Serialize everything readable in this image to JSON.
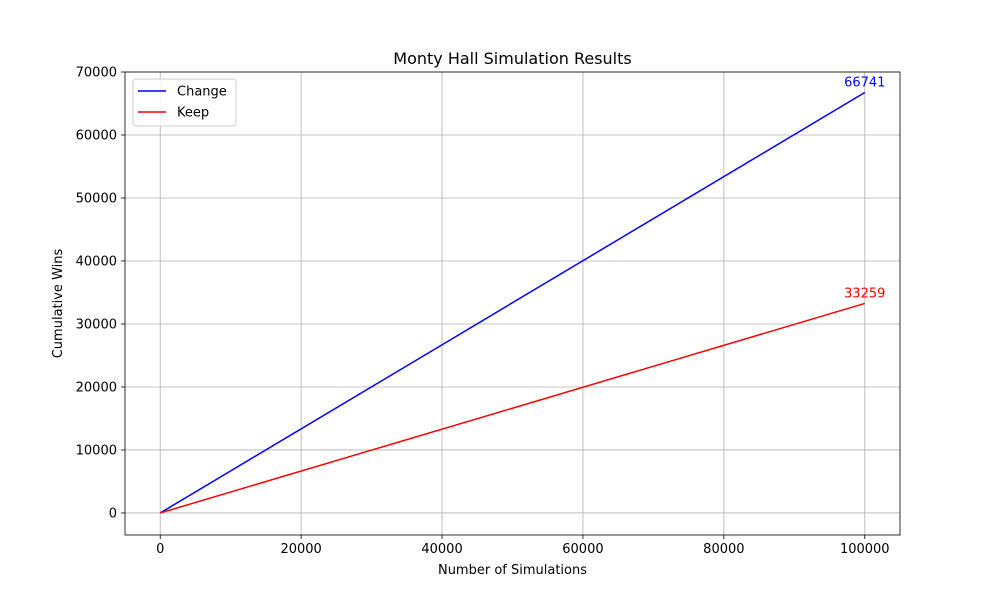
{
  "chart_data": {
    "type": "line",
    "title": "Monty Hall Simulation Results",
    "xlabel": "Number of Simulations",
    "ylabel": "Cumulative Wins",
    "xlim": [
      -5000,
      105000
    ],
    "ylim": [
      -3500,
      70000
    ],
    "xticks": [
      0,
      20000,
      40000,
      60000,
      80000,
      100000
    ],
    "yticks": [
      0,
      10000,
      20000,
      30000,
      40000,
      50000,
      60000,
      70000
    ],
    "grid": true,
    "legend_position": "top-left",
    "series": [
      {
        "name": "Change",
        "color": "#0000ff",
        "x": [
          0,
          100000
        ],
        "y": [
          0,
          66741
        ],
        "end_label": "66741"
      },
      {
        "name": "Keep",
        "color": "#ff0000",
        "x": [
          0,
          100000
        ],
        "y": [
          0,
          33259
        ],
        "end_label": "33259"
      }
    ]
  }
}
